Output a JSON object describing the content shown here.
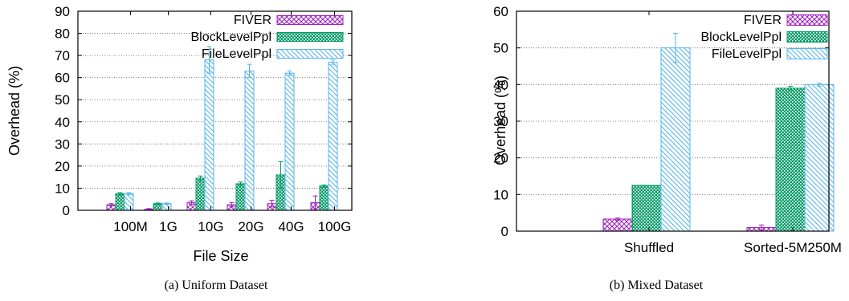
{
  "chart_data": [
    {
      "type": "bar",
      "caption": "(a) Uniform Dataset",
      "xlabel": "File Size",
      "ylabel": "Overhead (%)",
      "ylim": [
        0,
        90
      ],
      "yticks": [
        0,
        10,
        20,
        30,
        40,
        50,
        60,
        70,
        80,
        90
      ],
      "categories": [
        "100M",
        "1G",
        "10G",
        "20G",
        "40G",
        "100G"
      ],
      "grid": "horizontal-dotted",
      "legend_position": "top-right",
      "series": [
        {
          "name": "FIVER",
          "pattern": "crosshatch",
          "color": "#a020c0",
          "values": [
            2.5,
            0.5,
            3.5,
            2.5,
            3.0,
            3.5
          ],
          "errors": [
            0.5,
            0.3,
            0.8,
            1.0,
            1.5,
            3.0
          ]
        },
        {
          "name": "BlockLevelPpl",
          "pattern": "dots",
          "color": "#009b67",
          "values": [
            7.5,
            3.0,
            14.5,
            12.0,
            16.0,
            11.0
          ],
          "errors": [
            0.5,
            0.3,
            1.0,
            0.8,
            6.0,
            0.5
          ]
        },
        {
          "name": "FileLevelPpl",
          "pattern": "diagonal",
          "color": "#56b4e9",
          "values": [
            7.5,
            3.0,
            68.0,
            63.0,
            62.0,
            67.0
          ],
          "errors": [
            0.5,
            0.3,
            6.0,
            3.0,
            1.0,
            1.0
          ]
        }
      ]
    },
    {
      "type": "bar",
      "caption": "(b) Mixed Dataset",
      "xlabel": "",
      "ylabel": "Overhead (%)",
      "ylim": [
        0,
        60
      ],
      "yticks": [
        0,
        10,
        20,
        30,
        40,
        50,
        60
      ],
      "categories": [
        "Shuffled",
        "Sorted-5M250M"
      ],
      "grid": "horizontal-dotted",
      "legend_position": "top-right",
      "series": [
        {
          "name": "FIVER",
          "pattern": "crosshatch",
          "color": "#a020c0",
          "values": [
            3.3,
            1.0
          ],
          "errors": [
            0.3,
            0.7
          ]
        },
        {
          "name": "BlockLevelPpl",
          "pattern": "dots",
          "color": "#009b67",
          "values": [
            12.5,
            39.0
          ],
          "errors": [
            0.0,
            0.5
          ]
        },
        {
          "name": "FileLevelPpl",
          "pattern": "diagonal",
          "color": "#56b4e9",
          "values": [
            50.0,
            40.0
          ],
          "errors": [
            4.0,
            0.4
          ]
        }
      ]
    }
  ]
}
